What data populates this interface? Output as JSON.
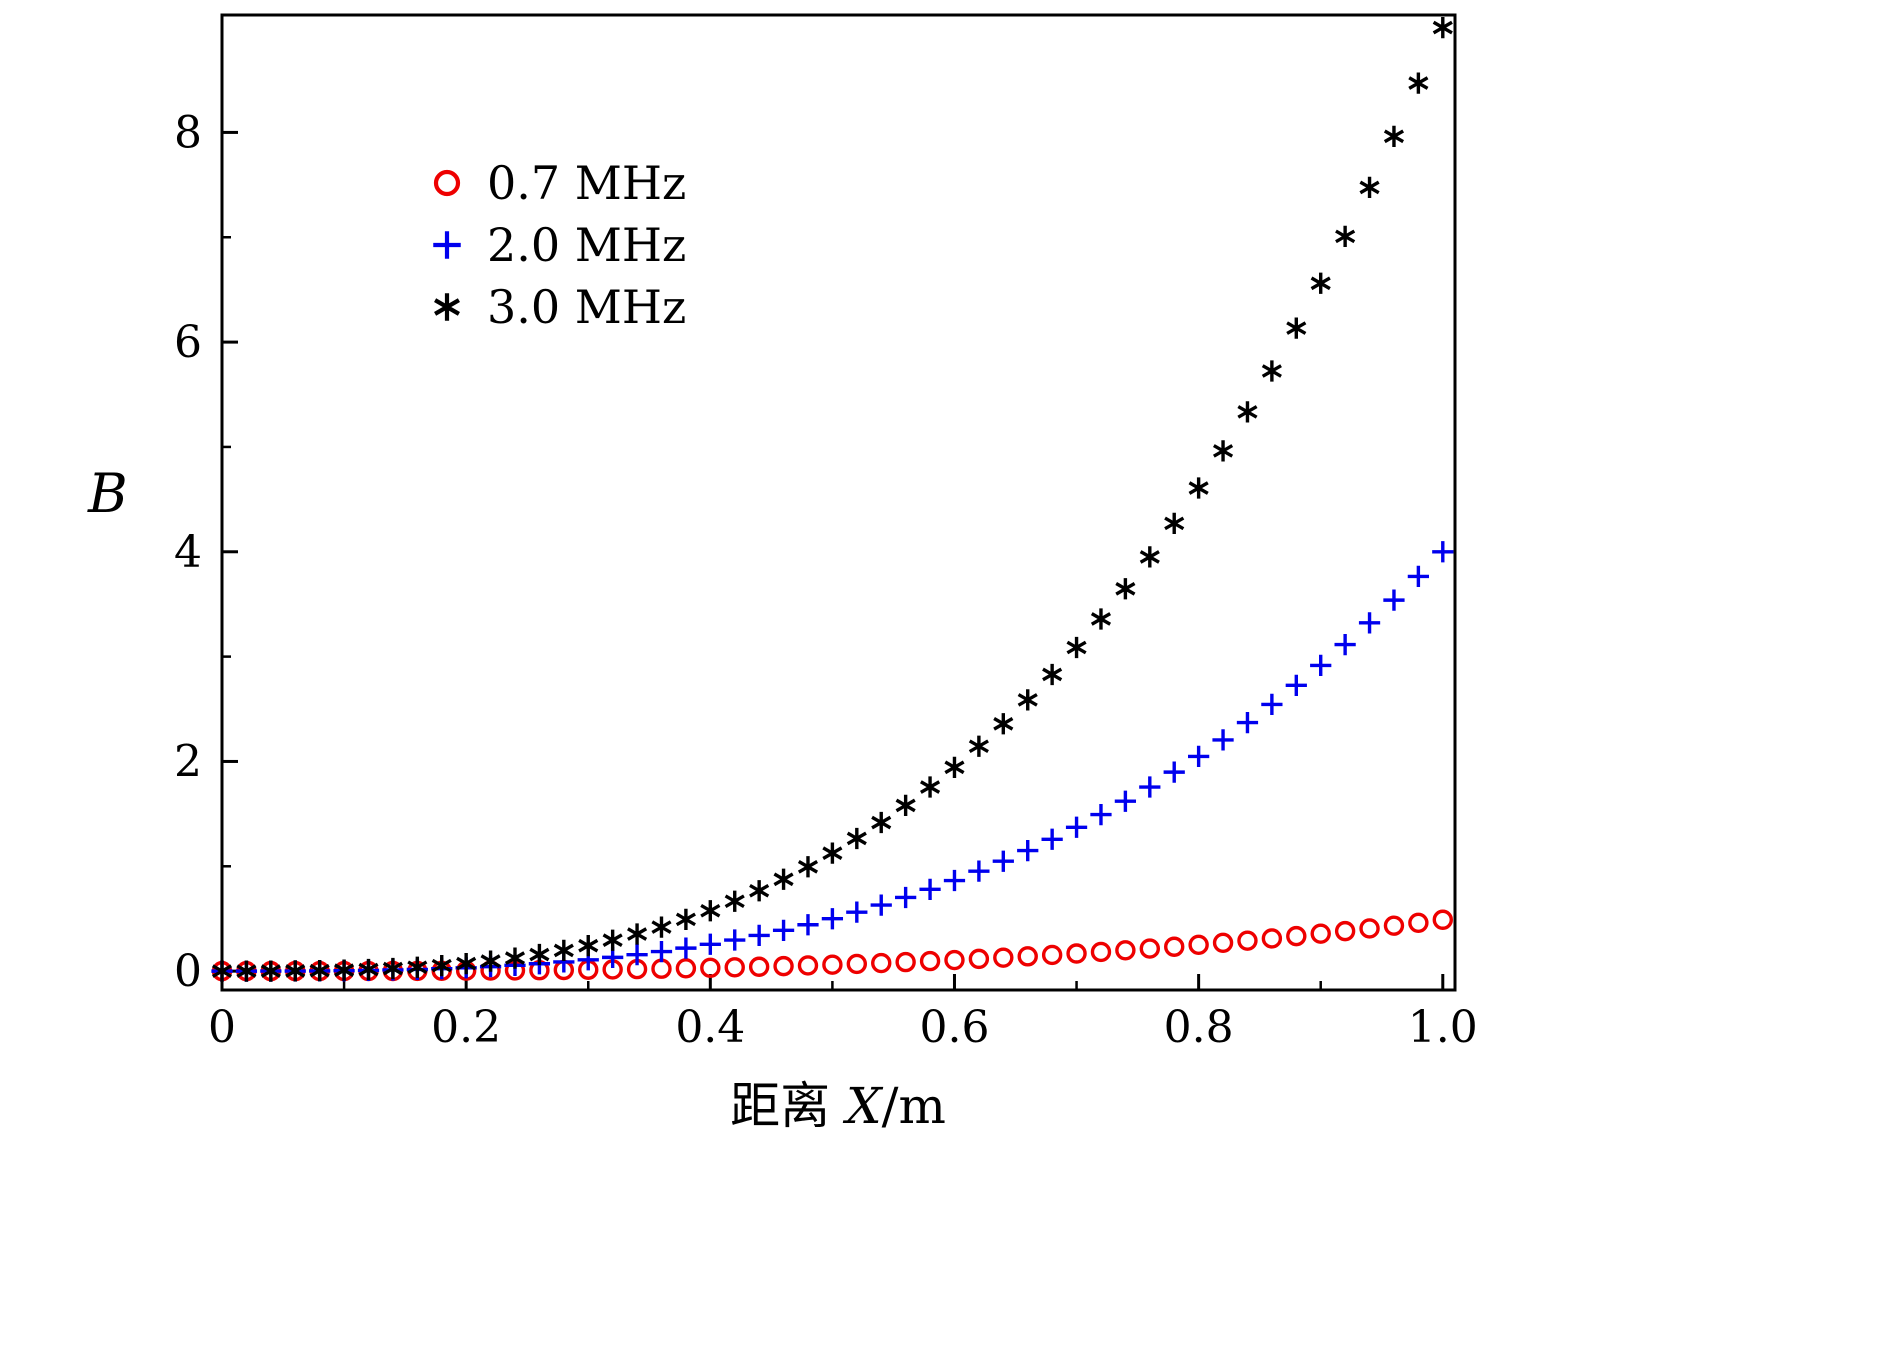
{
  "figure": {
    "ylabel": "B",
    "xlabel_prefix": "距离 ",
    "xlabel_var": "X",
    "xlabel_suffix": "/m"
  },
  "chart_data": {
    "type": "scatter",
    "title": "",
    "xlabel": "距离 X/m",
    "ylabel": "B",
    "xlim": [
      0,
      1.01
    ],
    "ylim": [
      -0.18,
      9.12
    ],
    "grid": false,
    "legend_position": "upper-left-inside",
    "x_ticks": [
      0,
      0.2,
      0.4,
      0.6,
      0.8,
      1.0
    ],
    "x_tick_labels": [
      "0",
      "0.2",
      "0.4",
      "0.6",
      "0.8",
      "1.0"
    ],
    "x_minor_ticks": [
      0.1,
      0.3,
      0.5,
      0.7,
      0.9
    ],
    "y_ticks": [
      0,
      2,
      4,
      6,
      8
    ],
    "y_tick_labels": [
      "0",
      "2",
      "4",
      "6",
      "8"
    ],
    "y_minor_ticks": [
      1,
      3,
      5,
      7
    ],
    "x": [
      0,
      0.02,
      0.04,
      0.06,
      0.08,
      0.1,
      0.12,
      0.14,
      0.16,
      0.18,
      0.2,
      0.22,
      0.24,
      0.26,
      0.28,
      0.3,
      0.32,
      0.34,
      0.36,
      0.38,
      0.4,
      0.42,
      0.44,
      0.46,
      0.48,
      0.5,
      0.52,
      0.54,
      0.56,
      0.58,
      0.6,
      0.62,
      0.64,
      0.66,
      0.68,
      0.7,
      0.72,
      0.74,
      0.76,
      0.78,
      0.8,
      0.82,
      0.84,
      0.86,
      0.88,
      0.9,
      0.92,
      0.94,
      0.96,
      0.98,
      1.0
    ],
    "series": [
      {
        "name": "0.7 MHz",
        "marker": "circle",
        "color": "#ee0000",
        "values": [
          0,
          0.0,
          0.0,
          0.0001,
          0.0003,
          0.0005,
          0.0008,
          0.0013,
          0.002,
          0.0029,
          0.0039,
          0.0052,
          0.0068,
          0.0086,
          0.0108,
          0.0132,
          0.0161,
          0.0193,
          0.0229,
          0.0269,
          0.0314,
          0.0363,
          0.0417,
          0.0477,
          0.0542,
          0.0613,
          0.0689,
          0.0772,
          0.0861,
          0.0956,
          0.1058,
          0.1168,
          0.1285,
          0.1409,
          0.1541,
          0.1681,
          0.1829,
          0.1986,
          0.2151,
          0.2325,
          0.2509,
          0.2702,
          0.2904,
          0.3117,
          0.3339,
          0.3572,
          0.3816,
          0.407,
          0.4335,
          0.4612,
          0.49
        ]
      },
      {
        "name": "2.0 MHz",
        "marker": "plus",
        "color": "#0000ee",
        "values": [
          0,
          0.0,
          0.0003,
          0.0009,
          0.002,
          0.004,
          0.0069,
          0.011,
          0.0164,
          0.0233,
          0.032,
          0.0426,
          0.0553,
          0.0703,
          0.0878,
          0.108,
          0.1311,
          0.1572,
          0.1866,
          0.2195,
          0.256,
          0.2964,
          0.3407,
          0.3893,
          0.4424,
          0.5,
          0.5624,
          0.6299,
          0.7025,
          0.7804,
          0.864,
          0.9533,
          1.0486,
          1.15,
          1.2577,
          1.372,
          1.493,
          1.6209,
          1.7559,
          1.8982,
          2.048,
          2.2055,
          2.3708,
          2.5442,
          2.7259,
          2.916,
          3.1148,
          3.3223,
          3.5389,
          3.7648,
          4.0
        ]
      },
      {
        "name": "3.0 MHz",
        "marker": "asterisk",
        "color": "#000000",
        "values": [
          0,
          0.0001,
          0.0006,
          0.0019,
          0.0046,
          0.009,
          0.0156,
          0.0247,
          0.0369,
          0.0525,
          0.072,
          0.0958,
          0.1244,
          0.1582,
          0.1976,
          0.243,
          0.2949,
          0.3537,
          0.4199,
          0.4938,
          0.576,
          0.6668,
          0.7667,
          0.876,
          0.9953,
          1.125,
          1.2655,
          1.4172,
          1.5805,
          1.756,
          1.944,
          2.145,
          2.3593,
          2.5875,
          2.8299,
          3.087,
          3.3592,
          3.647,
          3.9508,
          4.271,
          4.608,
          4.9623,
          5.3343,
          5.7245,
          6.1332,
          6.561,
          7.0082,
          7.4753,
          7.9626,
          8.4707,
          9.0
        ]
      }
    ]
  }
}
